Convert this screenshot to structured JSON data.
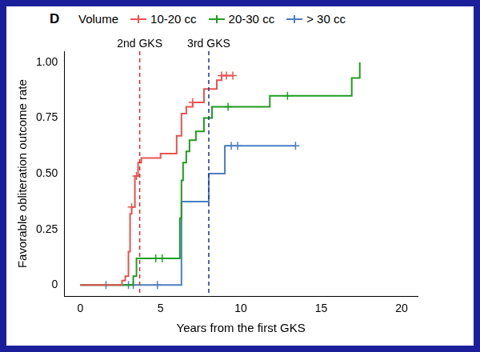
{
  "chart_data": {
    "type": "line",
    "title": "D",
    "x_label": "Years from the first GKS",
    "y_label": "Favorable obliteration outcome rate",
    "legend": "top",
    "legend_title": "Volume",
    "grid": false,
    "xlim": [
      -1,
      21
    ],
    "xticks": [
      0,
      5,
      10,
      15,
      20
    ],
    "ylim": [
      -0.05,
      1.05
    ],
    "yticks": [
      0,
      0.25,
      {
        "value": 0.5,
        "label": "0.50"
      },
      0.75,
      {
        "value": 1,
        "label": "1.00"
      }
    ],
    "series": [
      {
        "name": "10-20 cc",
        "color": "#e8534f",
        "line_style": "step",
        "marker": "plus",
        "x": [
          0,
          2.6,
          2.8,
          3.0,
          3.1,
          3.2,
          3.4,
          3.6,
          3.8,
          5.0,
          6.0,
          6.3,
          6.6,
          7.0,
          7.7,
          8.5,
          8.8,
          9.5
        ],
        "values": [
          0,
          0.02,
          0.04,
          0.15,
          0.32,
          0.35,
          0.49,
          0.55,
          0.57,
          0.59,
          0.67,
          0.77,
          0.8,
          0.82,
          0.88,
          0.92,
          0.94,
          0.94
        ],
        "censored_x": [
          3.2,
          3.5,
          7.0,
          8.8,
          9.1,
          9.5
        ],
        "censored_y": [
          0.35,
          0.49,
          0.82,
          0.94,
          0.94,
          0.94
        ]
      },
      {
        "name": "20-30 cc",
        "color": "#1f9e1f",
        "line_style": "step",
        "marker": "plus",
        "x": [
          0,
          3.3,
          3.5,
          6.1,
          6.2,
          6.3,
          6.4,
          6.6,
          6.8,
          7.2,
          7.7,
          8.2,
          11.8,
          16.9,
          17.4
        ],
        "values": [
          0,
          0.04,
          0.12,
          0.12,
          0.3,
          0.47,
          0.55,
          0.6,
          0.65,
          0.69,
          0.75,
          0.8,
          0.85,
          0.93,
          1.0
        ],
        "censored_x": [
          4.7,
          5.1,
          9.2,
          12.9
        ],
        "censored_y": [
          0.12,
          0.12,
          0.8,
          0.85
        ]
      },
      {
        "name": "> 30 cc",
        "color": "#4a7fc1",
        "line_style": "step",
        "marker": "plus",
        "x": [
          0,
          6.3,
          8.0,
          9.0,
          13.4
        ],
        "values": [
          0,
          0.375,
          0.5,
          0.625,
          0.625
        ],
        "censored_x": [
          1.6,
          3.0,
          3.3,
          4.8,
          9.4,
          9.8,
          13.4
        ],
        "censored_y": [
          0,
          0,
          0,
          0,
          0.625,
          0.625,
          0.625
        ]
      }
    ],
    "annotations": [
      {
        "x": 3.7,
        "label": "2nd GKS",
        "color": "#e3262b",
        "line_style": "dashed"
      },
      {
        "x": 8.0,
        "label": "3rd GKS",
        "color": "#1f2f9e",
        "line_style": "dashed"
      }
    ]
  }
}
